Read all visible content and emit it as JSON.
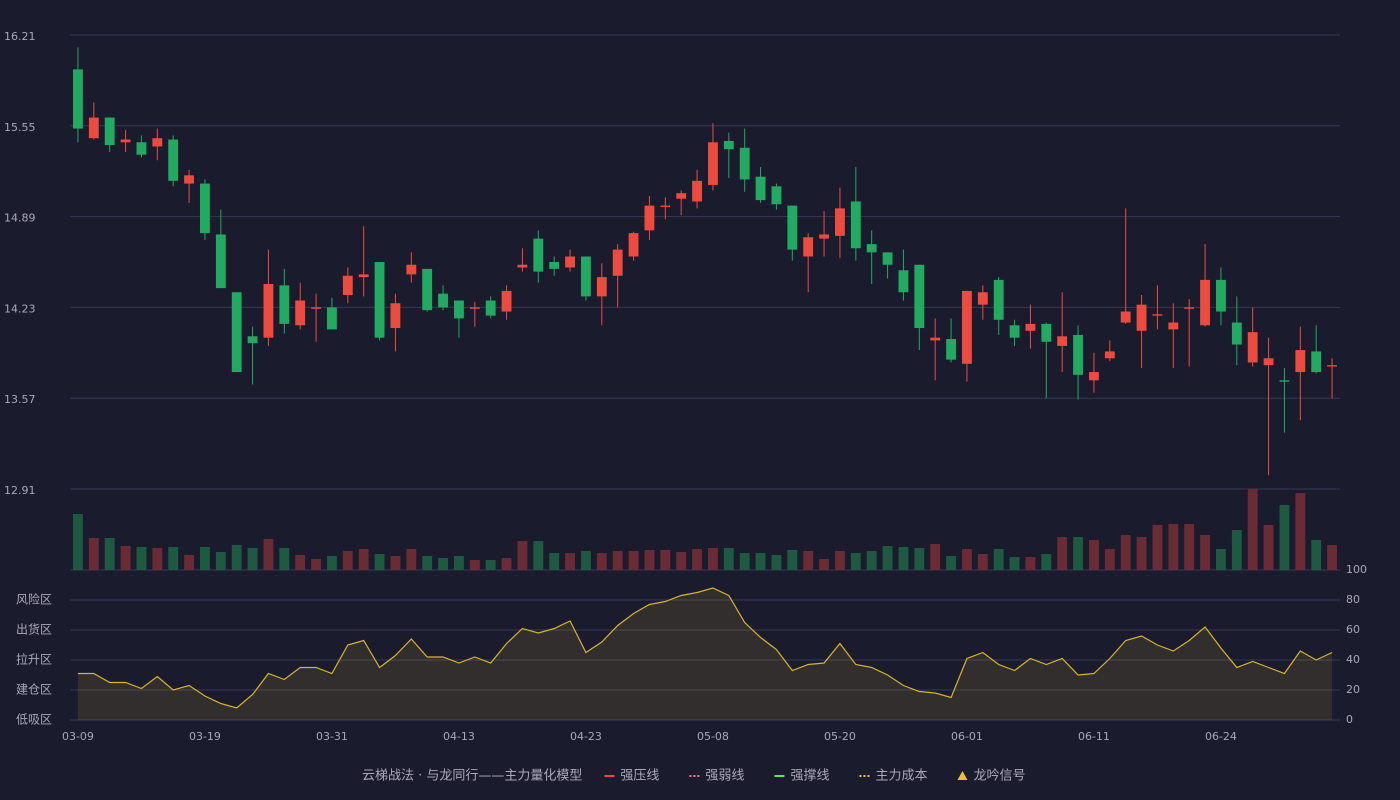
{
  "chart_data": {
    "type": "candlestick",
    "categories": [
      "03-09",
      null,
      null,
      null,
      null,
      null,
      null,
      null,
      "03-19",
      null,
      null,
      null,
      null,
      null,
      null,
      null,
      "03-31",
      null,
      null,
      null,
      null,
      null,
      null,
      null,
      "04-13",
      null,
      null,
      null,
      null,
      null,
      null,
      null,
      "04-23",
      null,
      null,
      null,
      null,
      null,
      null,
      null,
      "05-08",
      null,
      null,
      null,
      null,
      null,
      null,
      null,
      "05-20",
      null,
      null,
      null,
      null,
      null,
      null,
      null,
      "06-01",
      null,
      null,
      null,
      null,
      null,
      null,
      null,
      "06-11",
      null,
      null,
      null,
      null,
      null,
      null,
      null,
      "06-24",
      null,
      null,
      null,
      null,
      null,
      null,
      null
    ],
    "open": [
      15.96,
      15.46,
      15.61,
      15.43,
      15.43,
      15.4,
      15.45,
      15.13,
      15.13,
      14.76,
      14.34,
      14.02,
      14.01,
      14.39,
      14.1,
      14.22,
      14.23,
      14.32,
      14.45,
      14.56,
      14.08,
      14.47,
      14.51,
      14.33,
      14.28,
      14.22,
      14.28,
      14.2,
      14.52,
      14.73,
      14.56,
      14.52,
      14.6,
      14.31,
      14.46,
      14.6,
      14.79,
      14.96,
      15.02,
      15.0,
      15.12,
      15.44,
      15.39,
      15.18,
      15.11,
      14.97,
      14.6,
      14.73,
      14.75,
      15.0,
      14.69,
      14.63,
      14.5,
      14.54,
      13.99,
      14.0,
      13.82,
      14.25,
      14.43,
      14.1,
      14.06,
      14.11,
      13.95,
      14.03,
      13.7,
      13.86,
      14.12,
      14.06,
      14.17,
      14.07,
      14.22,
      14.1,
      14.43,
      14.12,
      13.83,
      13.81,
      13.7,
      13.76,
      13.91,
      13.8
    ],
    "close": [
      15.53,
      15.61,
      15.41,
      15.45,
      15.34,
      15.46,
      15.15,
      15.19,
      14.77,
      14.37,
      13.76,
      13.97,
      14.4,
      14.11,
      14.28,
      14.23,
      14.07,
      14.46,
      14.47,
      14.01,
      14.26,
      14.54,
      14.21,
      14.23,
      14.15,
      14.23,
      14.17,
      14.35,
      14.54,
      14.49,
      14.51,
      14.6,
      14.31,
      14.45,
      14.65,
      14.77,
      14.97,
      14.97,
      15.06,
      15.15,
      15.43,
      15.38,
      15.16,
      15.01,
      14.98,
      14.65,
      14.74,
      14.76,
      14.95,
      14.66,
      14.63,
      14.54,
      14.34,
      14.08,
      14.01,
      13.85,
      14.35,
      14.34,
      14.14,
      14.01,
      14.11,
      13.98,
      14.02,
      13.74,
      13.76,
      13.91,
      14.2,
      14.25,
      14.18,
      14.12,
      14.23,
      14.43,
      14.2,
      13.96,
      14.05,
      13.86,
      13.69,
      13.92,
      13.76,
      13.81
    ],
    "low": [
      15.43,
      15.45,
      15.36,
      15.36,
      15.32,
      15.3,
      15.11,
      14.99,
      14.72,
      14.37,
      13.76,
      13.67,
      13.95,
      14.04,
      14.07,
      13.98,
      14.07,
      14.26,
      14.31,
      13.99,
      13.91,
      14.41,
      14.2,
      14.21,
      14.01,
      14.09,
      14.15,
      14.14,
      14.49,
      14.41,
      14.46,
      14.49,
      14.28,
      14.1,
      14.23,
      14.57,
      14.72,
      14.87,
      14.9,
      14.95,
      15.08,
      15.17,
      15.07,
      14.99,
      14.94,
      14.57,
      14.34,
      14.6,
      14.59,
      14.57,
      14.4,
      14.44,
      14.28,
      13.92,
      13.7,
      13.83,
      13.69,
      14.14,
      14.03,
      13.95,
      13.93,
      13.57,
      13.76,
      13.56,
      13.61,
      13.84,
      14.11,
      13.79,
      14.07,
      13.79,
      13.8,
      14.09,
      14.1,
      13.81,
      13.8,
      13.01,
      13.32,
      13.41,
      13.75,
      13.57
    ],
    "high": [
      16.12,
      15.72,
      15.61,
      15.52,
      15.48,
      15.53,
      15.48,
      15.23,
      15.16,
      14.94,
      14.34,
      14.09,
      14.65,
      14.51,
      14.41,
      14.33,
      14.3,
      14.52,
      14.82,
      14.56,
      14.33,
      14.63,
      14.51,
      14.39,
      14.28,
      14.27,
      14.31,
      14.39,
      14.66,
      14.79,
      14.6,
      14.65,
      14.6,
      14.55,
      14.69,
      14.78,
      15.04,
      15.03,
      15.08,
      15.23,
      15.57,
      15.5,
      15.53,
      15.25,
      15.13,
      14.97,
      14.77,
      14.93,
      15.1,
      15.25,
      14.79,
      14.63,
      14.65,
      14.54,
      14.15,
      14.15,
      14.35,
      14.39,
      14.45,
      14.14,
      14.25,
      14.12,
      14.34,
      14.1,
      13.9,
      13.99,
      14.95,
      14.32,
      14.39,
      14.26,
      14.29,
      14.69,
      14.52,
      14.31,
      14.23,
      14.01,
      13.79,
      14.09,
      14.1,
      13.86
    ],
    "up_color": "#ee4b40",
    "down_color": "#22aa62",
    "ylim": [
      12.91,
      16.21
    ],
    "yticks": [
      12.91,
      13.57,
      14.23,
      14.89,
      15.55,
      16.21
    ],
    "grid": true,
    "volume": [
      56,
      32,
      32,
      24,
      23,
      22,
      23,
      15,
      23,
      18,
      25,
      22,
      31,
      22,
      15,
      11,
      14,
      19,
      21,
      16,
      14,
      21,
      14,
      12,
      14,
      10,
      10,
      12,
      29,
      29,
      17,
      17,
      19,
      17,
      19,
      19,
      20,
      20,
      18,
      21,
      22,
      22,
      17,
      17,
      15,
      20,
      19,
      11,
      19,
      17,
      19,
      24,
      23,
      22,
      26,
      14,
      21,
      16,
      21,
      13,
      13,
      16,
      33,
      33,
      30,
      21,
      35,
      33,
      45,
      46,
      46,
      35,
      21,
      40,
      81,
      45,
      65,
      77,
      30,
      25
    ],
    "volume_up_color": "#6a2c34",
    "volume_down_color": "#1e5a42",
    "indicator": {
      "values": [
        31,
        31,
        25,
        25,
        21,
        29,
        20,
        23,
        16,
        11,
        8,
        17,
        31,
        27,
        35,
        35,
        31,
        50,
        53,
        35,
        43,
        54,
        42,
        42,
        38,
        42,
        38,
        51,
        61,
        58,
        61,
        66,
        45,
        52,
        63,
        71,
        77,
        79,
        83,
        85,
        88,
        83,
        65,
        55,
        47,
        33,
        37,
        38,
        51,
        37,
        35,
        30,
        23,
        19,
        18,
        15,
        41,
        45,
        37,
        33,
        41,
        37,
        41,
        30,
        31,
        41,
        53,
        56,
        50,
        46,
        53,
        62,
        48,
        35,
        39,
        35,
        31,
        46,
        40,
        45
      ],
      "color": "#d6b42c",
      "ylim": [
        0,
        100
      ],
      "yticks": [
        0,
        20,
        40,
        60,
        80,
        100
      ],
      "ytick_colors": [
        "#ff3b3b",
        "#ff5a78",
        "#4a8cff",
        "#e040e0",
        "#f0a030",
        "#44e044"
      ],
      "zones": [
        {
          "value": 80,
          "label": "风险区",
          "color": "#f0a030"
        },
        {
          "value": 60,
          "label": "出货区",
          "color": "#e040e0"
        },
        {
          "value": 40,
          "label": "拉升区",
          "color": "#4a8cff"
        },
        {
          "value": 20,
          "label": "建仓区",
          "color": "#ff5a78"
        },
        {
          "value": 0,
          "label": "低吸区",
          "color": "#ff3b3b"
        }
      ]
    },
    "legend_title": "云梯战法 · 与龙同行——主力量化模型",
    "legend_title_color": "#e8c46a",
    "legend": [
      {
        "name": "强压线",
        "color": "#ff4444",
        "style": "solid"
      },
      {
        "name": "强弱线",
        "color": "#ff7a9a",
        "style": "dashed"
      },
      {
        "name": "强撑线",
        "color": "#55ee55",
        "style": "solid"
      },
      {
        "name": "主力成本",
        "color": "#f0c030",
        "style": "dashed"
      },
      {
        "name": "龙吟信号",
        "color": "#f0c030",
        "style": "triangle"
      }
    ]
  }
}
